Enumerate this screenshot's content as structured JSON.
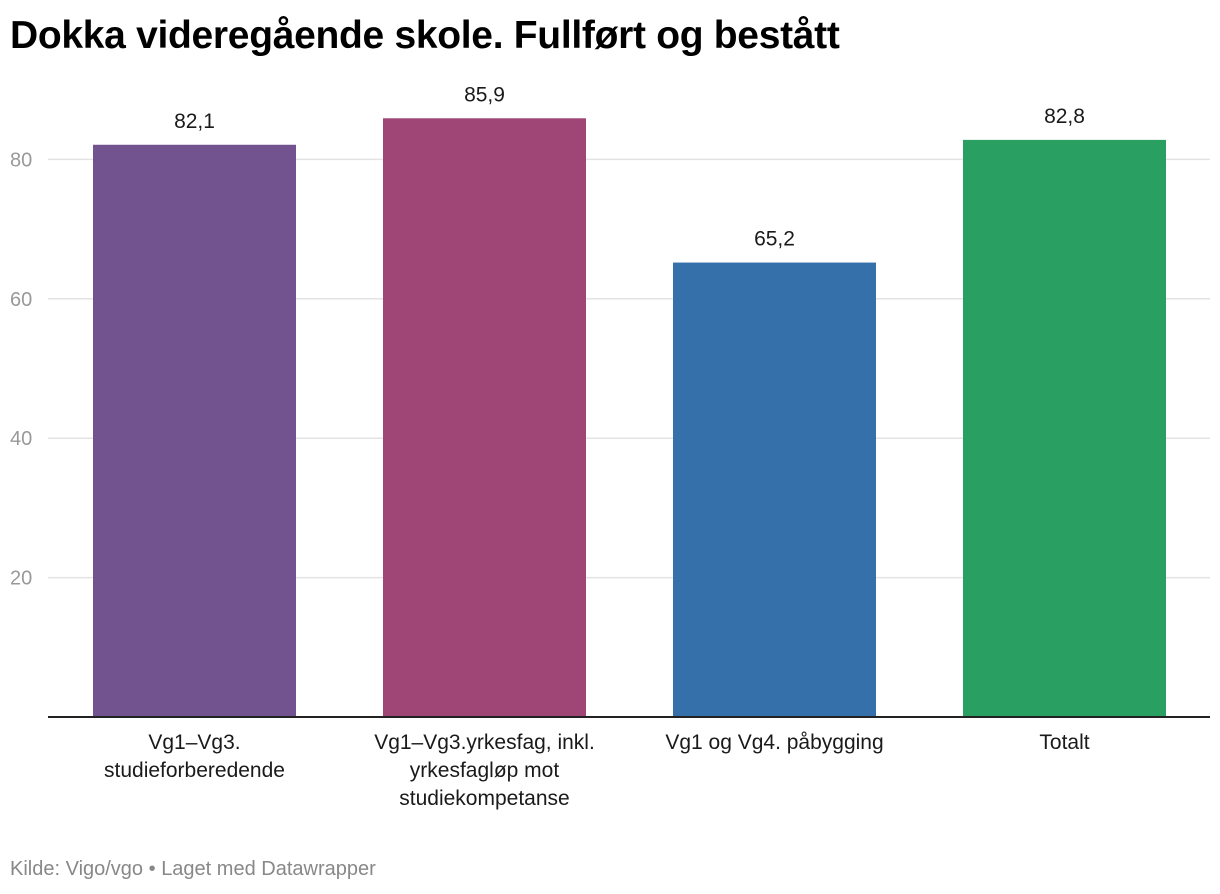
{
  "header": {
    "title": "Dokka videregående skole. Fullført og bestått"
  },
  "footer": {
    "source": "Kilde: Vigo/vgo",
    "separator": " • ",
    "credit": "Laget med Datawrapper"
  },
  "chart_data": {
    "type": "bar",
    "title": "Dokka videregående skole. Fullført og bestått",
    "categories": [
      [
        "Vg1–Vg3.",
        "studieforberedende"
      ],
      [
        "Vg1–Vg3.yrkesfag, inkl.",
        "yrkesfagløp mot",
        "studiekompetanse"
      ],
      [
        "Vg1 og Vg4. påbygging"
      ],
      [
        "Totalt"
      ]
    ],
    "values": [
      82.1,
      85.9,
      65.2,
      82.8
    ],
    "value_labels": [
      "82,1",
      "85,9",
      "65,2",
      "82,8"
    ],
    "colors": [
      "#735290",
      "#a04677",
      "#3570ab",
      "#2a9f62"
    ],
    "yticks": [
      20,
      40,
      60,
      80
    ],
    "ylim": [
      0,
      100
    ],
    "grid": true,
    "xlabel": "",
    "ylabel": ""
  }
}
